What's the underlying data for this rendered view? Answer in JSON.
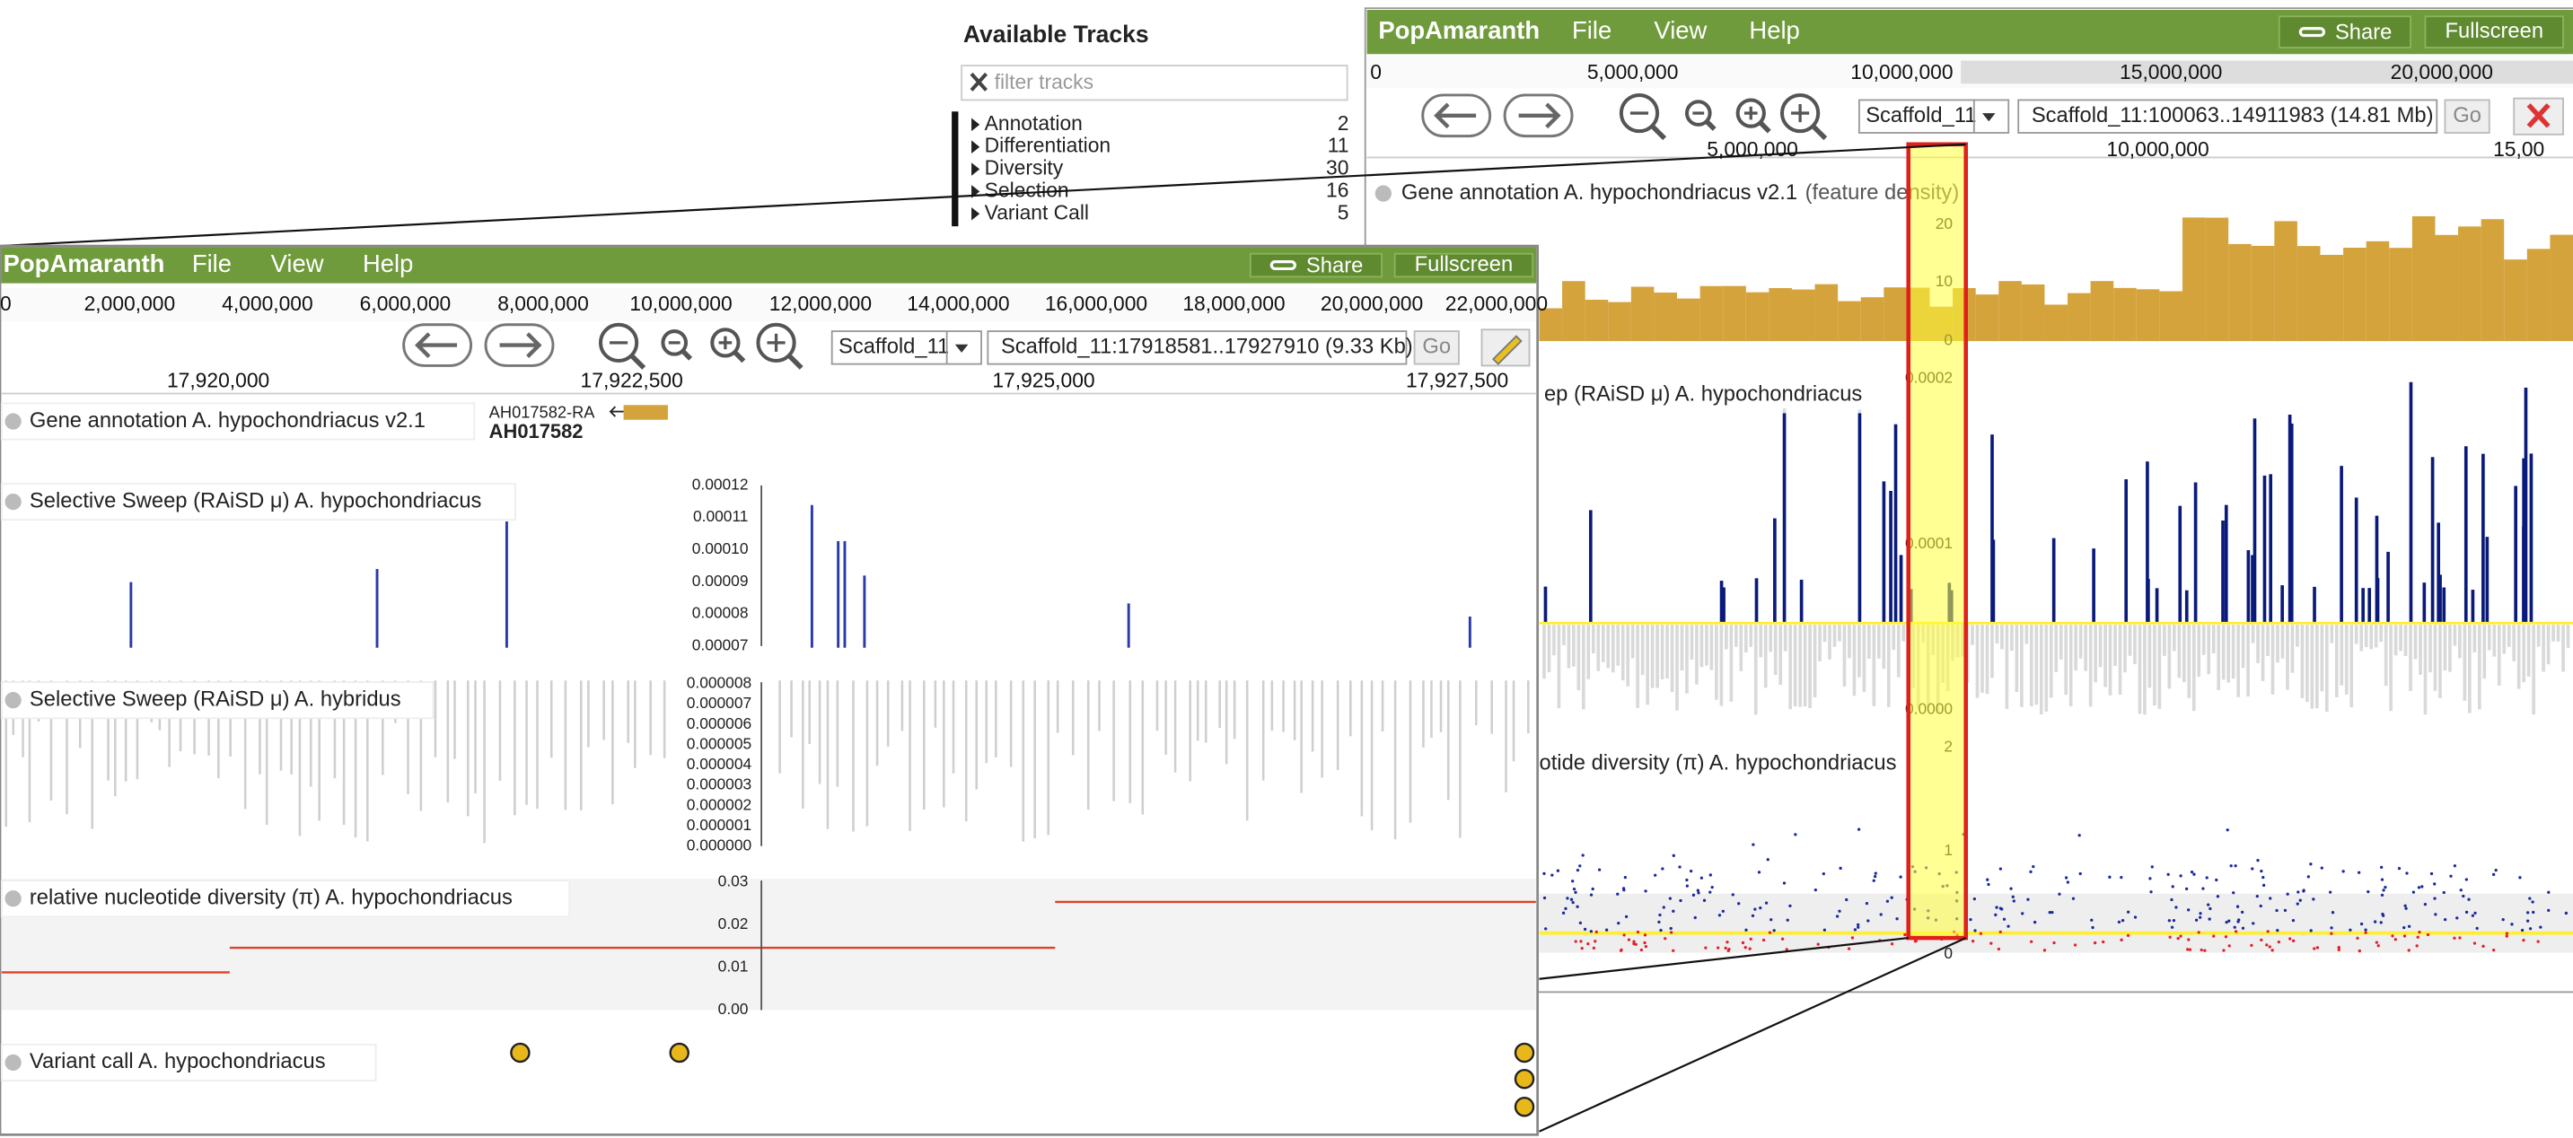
{
  "available_tracks": {
    "title": "Available Tracks",
    "filter_placeholder": "filter tracks",
    "categories": [
      {
        "name": "Annotation",
        "count": 2
      },
      {
        "name": "Differentiation",
        "count": 11
      },
      {
        "name": "Diversity",
        "count": 30
      },
      {
        "name": "Selection",
        "count": 16
      },
      {
        "name": "Variant Call",
        "count": 5
      }
    ]
  },
  "overview_window": {
    "brand": "PopAmaranth",
    "menu": [
      "File",
      "View",
      "Help"
    ],
    "share": "Share",
    "fullscreen": "Fullscreen",
    "ruler_ticks": [
      "0",
      "5,000,000",
      "10,000,000",
      "15,000,000",
      "20,000,000"
    ],
    "reference": "Scaffold_11",
    "locus": "Scaffold_11:100063..14911983 (14.81 Mb)",
    "go": "Go",
    "scale_ticks": [
      "5,000,000",
      "10,000,000",
      "15,00"
    ],
    "tracks": [
      {
        "label": "Gene annotation A. hypochondriacus v2.1",
        "note": "(feature density)",
        "axis": [
          "20",
          "10",
          "0"
        ]
      },
      {
        "label": "ep (RAiSD μ) A. hypochondriacus",
        "axis": [
          "0.0002",
          "0.0001",
          "0.0000"
        ]
      },
      {
        "label": "otide diversity (π) A. hypochondriacus",
        "axis": [
          "2",
          "1",
          "0"
        ]
      }
    ]
  },
  "detail_window": {
    "brand": "PopAmaranth",
    "menu": [
      "File",
      "View",
      "Help"
    ],
    "share": "Share",
    "fullscreen": "Fullscreen",
    "ruler_ticks": [
      "0",
      "2,000,000",
      "4,000,000",
      "6,000,000",
      "8,000,000",
      "10,000,000",
      "12,000,000",
      "14,000,000",
      "16,000,000",
      "18,000,000",
      "20,000,000",
      "22,000,000"
    ],
    "reference": "Scaffold_11",
    "locus": "Scaffold_11:17918581..17927910 (9.33 Kb)",
    "go": "Go",
    "scale_ticks": [
      "17,920,000",
      "17,922,500",
      "17,925,000",
      "17,927,500"
    ],
    "tracks": [
      {
        "label": "Gene annotation A. hypochondriacus v2.1",
        "feature_id": "AH017582-RA",
        "feature_name": "AH017582"
      },
      {
        "label": "Selective Sweep (RAiSD μ) A. hypochondriacus",
        "axis": [
          "0.00012",
          "0.00011",
          "0.00010",
          "0.00009",
          "0.00008",
          "0.00007"
        ]
      },
      {
        "label": "Selective Sweep (RAiSD μ) A. hybridus",
        "axis": [
          "0.000008",
          "0.000007",
          "0.000006",
          "0.000005",
          "0.000004",
          "0.000003",
          "0.000002",
          "0.000001",
          "0.000000"
        ]
      },
      {
        "label": "relative nucleotide diversity (π) A. hypochondriacus",
        "axis": [
          "0.03",
          "0.02",
          "0.01",
          "0.00"
        ]
      },
      {
        "label": "Variant call A. hypochondriacus"
      }
    ]
  }
}
